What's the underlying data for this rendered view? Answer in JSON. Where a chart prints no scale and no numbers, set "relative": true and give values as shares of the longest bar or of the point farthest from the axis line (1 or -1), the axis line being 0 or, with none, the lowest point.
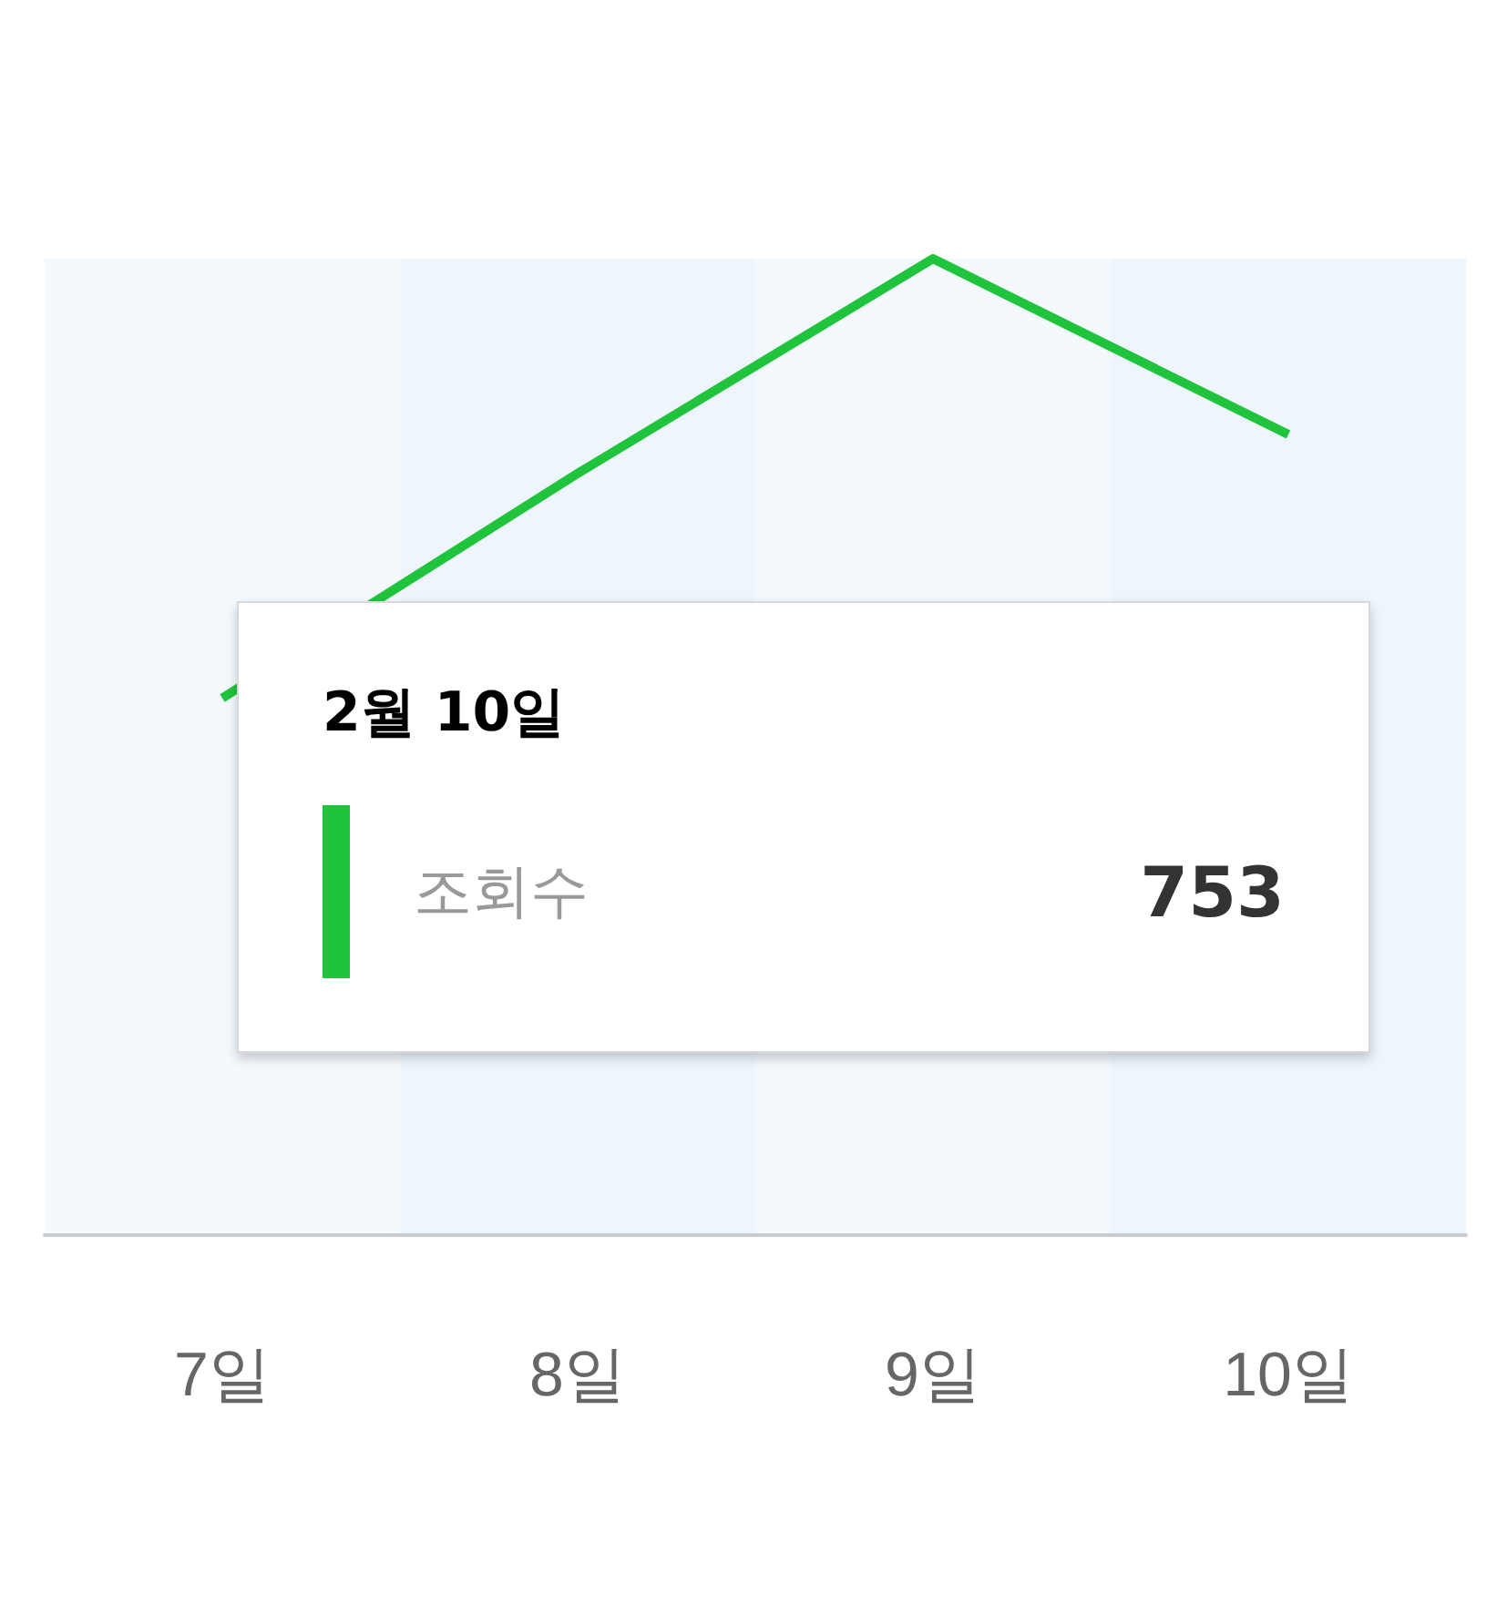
{
  "chart_data": {
    "type": "line",
    "relative": true,
    "categories": [
      "7일",
      "8일",
      "9일",
      "10일"
    ],
    "series": [
      {
        "name": "조회수",
        "color": "#1fc43c",
        "values": [
          0.55,
          0.78,
          1,
          0.82
        ]
      }
    ],
    "annotations": [
      "2월 10일",
      "753"
    ],
    "marker": "none",
    "legend": "bottom left"
  }
}
